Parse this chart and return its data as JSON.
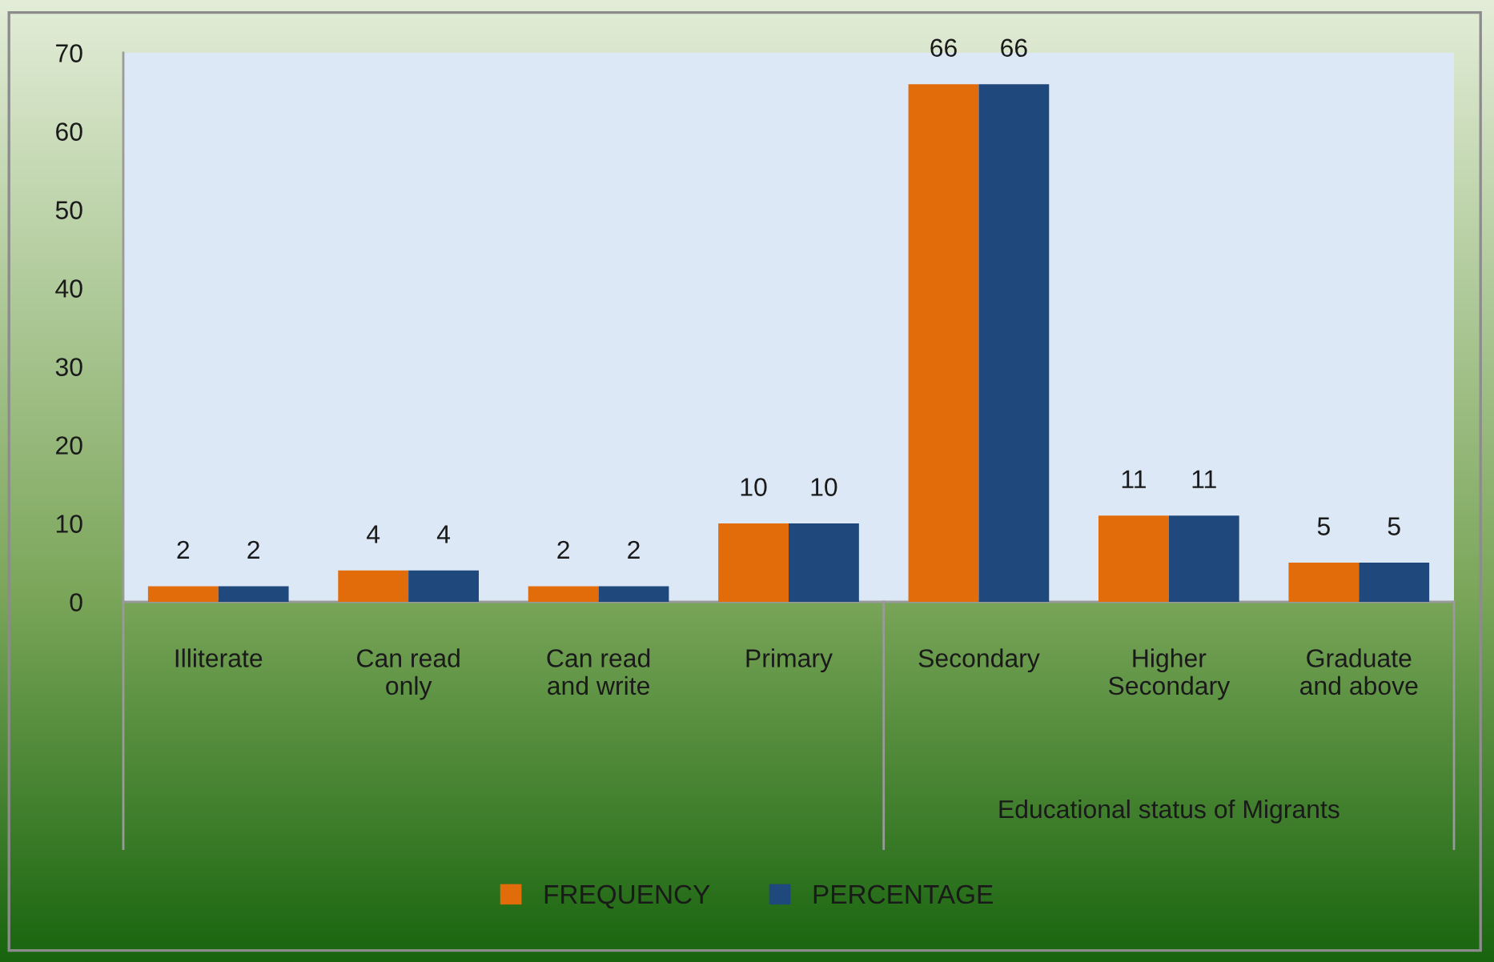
{
  "chart_data": {
    "type": "bar",
    "categories": [
      "Illiterate",
      "Can read\nonly",
      "Can read\nand write",
      "Primary",
      "Secondary",
      "Higher\nSecondary",
      "Graduate\nand above"
    ],
    "xlabel": "Educational status of Migrants",
    "series": [
      {
        "name": "FREQUENCY",
        "color": "#e36c0a",
        "values": [
          2,
          4,
          2,
          10,
          66,
          11,
          5
        ]
      },
      {
        "name": "PERCENTAGE",
        "color": "#1f497d",
        "values": [
          2,
          4,
          2,
          10,
          66,
          11,
          5
        ]
      }
    ],
    "ylim": [
      0,
      70
    ],
    "yticks": [
      0,
      10,
      20,
      30,
      40,
      50,
      60,
      70
    ],
    "data_labels": true,
    "legend": "bottom",
    "grid": false
  }
}
